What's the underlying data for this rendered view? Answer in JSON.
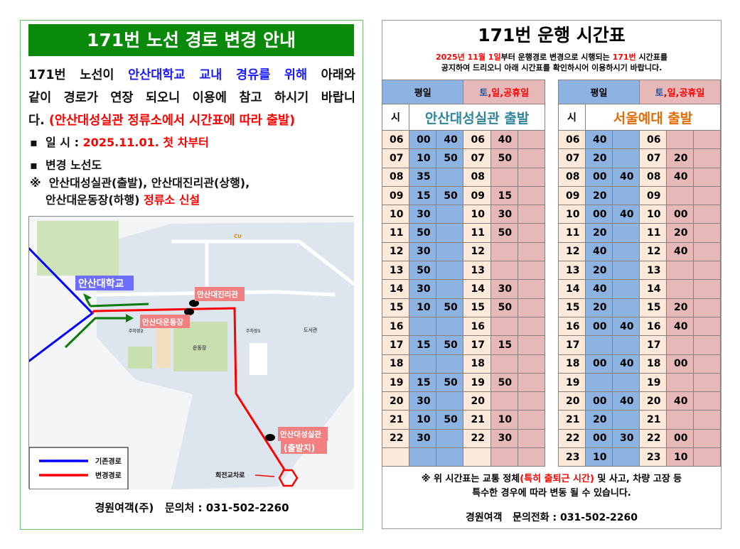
{
  "left": {
    "title": "171번 노선 경로 변경 안내",
    "intro": {
      "a": "171번 노선이 ",
      "b": "안산대학교 교내 경유를 위해",
      "c": " 아래와",
      "line2": "같이 경로가 연장 되오니 이용에 참고 하시기 바랍니",
      "line3a": "다. ",
      "line3b": "(안산대성실관 정류소에서 시간표에 따라 출발)"
    },
    "date_label": "일 시 : ",
    "date_value": "2025.11.01. 첫 차부터",
    "route_label": "변경 노선도",
    "stops_mark": "※",
    "stops_line1": "안산대성실관(출발), 안산대진리관(상행),",
    "stops_line2": "안산대운동장(하행) ",
    "stops_new": "정류소 신설",
    "map": {
      "labels": {
        "school": "안산대학교",
        "jinri": "안산대진리관",
        "sports": "안산대운동장",
        "seongsil": "안산대성실관",
        "start": "(출발지)",
        "roundabout": "회전교차로",
        "library": "도서관",
        "stadium": "운동장",
        "parking1": "주차장1",
        "parking2": "주차장2",
        "cu": "CU"
      },
      "legend": {
        "old": "기존경로",
        "new": "변경경로"
      },
      "colors": {
        "old": "#0000ff",
        "new": "#ff0000",
        "arrow": "#0a7a0a"
      }
    },
    "footer": "경원여객(주)   문의처 : 031-502-2260"
  },
  "right": {
    "title": "171번 운행 시간표",
    "notice1a": "2025년 11월 1일",
    "notice1b": "부터 운행경로 변경으로 시행되는 ",
    "notice1c": "171번",
    "notice1d": " 시간표를",
    "notice2": "공지하여 드리오니 아래 시간표를 확인하시어 이용하시기 바랍니다.",
    "weekday": "평일",
    "holiday_a": "토",
    "holiday_b": ",일,공휴일",
    "hour_label": "시",
    "left_dep": "안산대성실관 출발",
    "right_dep": "서울예대 출발",
    "left_rows": [
      [
        "06",
        "00",
        "40",
        "06",
        "40",
        ""
      ],
      [
        "07",
        "10",
        "50",
        "07",
        "50",
        ""
      ],
      [
        "08",
        "35",
        "",
        "08",
        "",
        ""
      ],
      [
        "09",
        "15",
        "50",
        "09",
        "15",
        ""
      ],
      [
        "10",
        "30",
        "",
        "10",
        "30",
        ""
      ],
      [
        "11",
        "50",
        "",
        "11",
        "50",
        ""
      ],
      [
        "12",
        "30",
        "",
        "12",
        "",
        ""
      ],
      [
        "13",
        "50",
        "",
        "13",
        "",
        ""
      ],
      [
        "14",
        "30",
        "",
        "14",
        "30",
        ""
      ],
      [
        "15",
        "10",
        "50",
        "15",
        "50",
        ""
      ],
      [
        "16",
        "",
        "",
        "16",
        "",
        ""
      ],
      [
        "17",
        "15",
        "50",
        "17",
        "15",
        ""
      ],
      [
        "18",
        "",
        "",
        "18",
        "",
        ""
      ],
      [
        "19",
        "15",
        "50",
        "19",
        "50",
        ""
      ],
      [
        "20",
        "30",
        "",
        "20",
        "",
        ""
      ],
      [
        "21",
        "10",
        "50",
        "21",
        "10",
        ""
      ],
      [
        "22",
        "30",
        "",
        "22",
        "30",
        ""
      ],
      [
        "",
        "",
        "",
        "",
        "",
        ""
      ]
    ],
    "right_rows": [
      [
        "06",
        "40",
        "",
        "06",
        "",
        ""
      ],
      [
        "07",
        "20",
        "",
        "07",
        "20",
        ""
      ],
      [
        "08",
        "00",
        "40",
        "08",
        "40",
        ""
      ],
      [
        "09",
        "20",
        "",
        "09",
        "",
        ""
      ],
      [
        "10",
        "00",
        "40",
        "10",
        "00",
        ""
      ],
      [
        "11",
        "20",
        "",
        "11",
        "20",
        ""
      ],
      [
        "12",
        "40",
        "",
        "12",
        "40",
        ""
      ],
      [
        "13",
        "20",
        "",
        "13",
        "",
        ""
      ],
      [
        "14",
        "40",
        "",
        "14",
        "",
        ""
      ],
      [
        "15",
        "20",
        "",
        "15",
        "20",
        ""
      ],
      [
        "16",
        "00",
        "40",
        "16",
        "40",
        ""
      ],
      [
        "17",
        "",
        "",
        "17",
        "",
        ""
      ],
      [
        "18",
        "00",
        "40",
        "18",
        "00",
        ""
      ],
      [
        "19",
        "",
        "",
        "19",
        "",
        ""
      ],
      [
        "20",
        "00",
        "40",
        "20",
        "40",
        ""
      ],
      [
        "21",
        "20",
        "",
        "21",
        "",
        ""
      ],
      [
        "22",
        "00",
        "30",
        "22",
        "00",
        ""
      ],
      [
        "23",
        "10",
        "",
        "23",
        "10",
        ""
      ]
    ],
    "note1a": "※ 위 시간표는 교통 정체",
    "note1b": "(특히 출퇴근 시간)",
    "note1c": " 및 사고, 차량 고장 등",
    "note2": "특수한 경우에 따라 변동 될 수 있습니다.",
    "footer": "경원여객   문의전화 : 031-502-2260"
  }
}
